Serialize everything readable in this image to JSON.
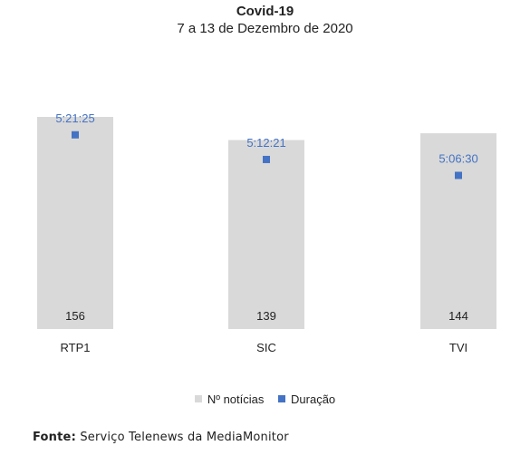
{
  "colors": {
    "bar": "#d9d9d9",
    "marker": "#4472c4",
    "duration_label": "#4472c4"
  },
  "chart_data": {
    "type": "bar",
    "title": "Covid-19",
    "subtitle": "7 a 13 de Dezembro de 2020",
    "categories": [
      "RTP1",
      "SIC",
      "TVI"
    ],
    "series": [
      {
        "name": "Nº notícias",
        "values": [
          156,
          139,
          144
        ]
      },
      {
        "name": "Duração",
        "values": [
          "5:21:25",
          "5:12:21",
          "5:06:30"
        ],
        "values_seconds": [
          19285,
          18741,
          18390
        ]
      }
    ],
    "legend_position": "bottom",
    "grid": false
  },
  "footer": {
    "label": "Fonte:",
    "text": "Serviço Telenews da MediaMonitor"
  }
}
